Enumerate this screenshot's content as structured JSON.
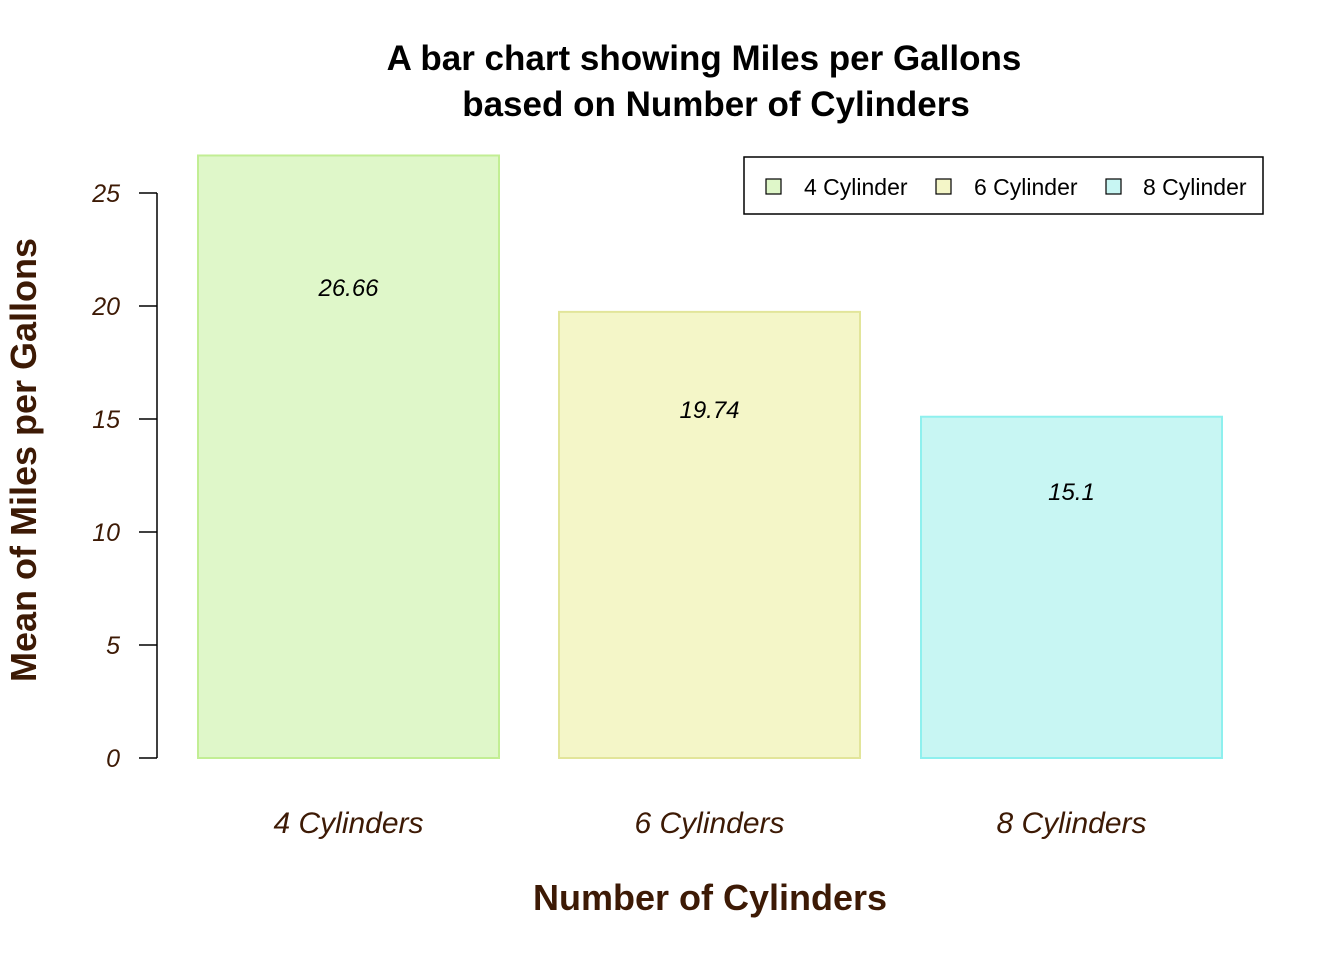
{
  "chart_data": {
    "type": "bar",
    "title_lines": [
      "A bar chart showing Miles per Gallons",
      "based on Number of Cylinders"
    ],
    "xlabel": "Number of Cylinders",
    "ylabel": "Mean of Miles per Gallons",
    "categories": [
      "4 Cylinders",
      "6 Cylinders",
      "8 Cylinders"
    ],
    "values": [
      26.66,
      19.74,
      15.1
    ],
    "data_labels": [
      "26.66",
      "19.74",
      "15.1"
    ],
    "ylim": [
      0,
      25
    ],
    "yticks": [
      0,
      5,
      10,
      15,
      20,
      25
    ],
    "bar_fill_colors": [
      "#dff7c9",
      "#f4f6c8",
      "#c8f6f3"
    ],
    "bar_border_colors": [
      "#c2ee94",
      "#e2e59a",
      "#8ef0ee"
    ],
    "axis_text_color": "#3d1a05",
    "grid": false,
    "legend": {
      "placement": "top-right",
      "items": [
        "4 Cylinder",
        "6 Cylinder",
        "8 Cylinder"
      ]
    }
  }
}
